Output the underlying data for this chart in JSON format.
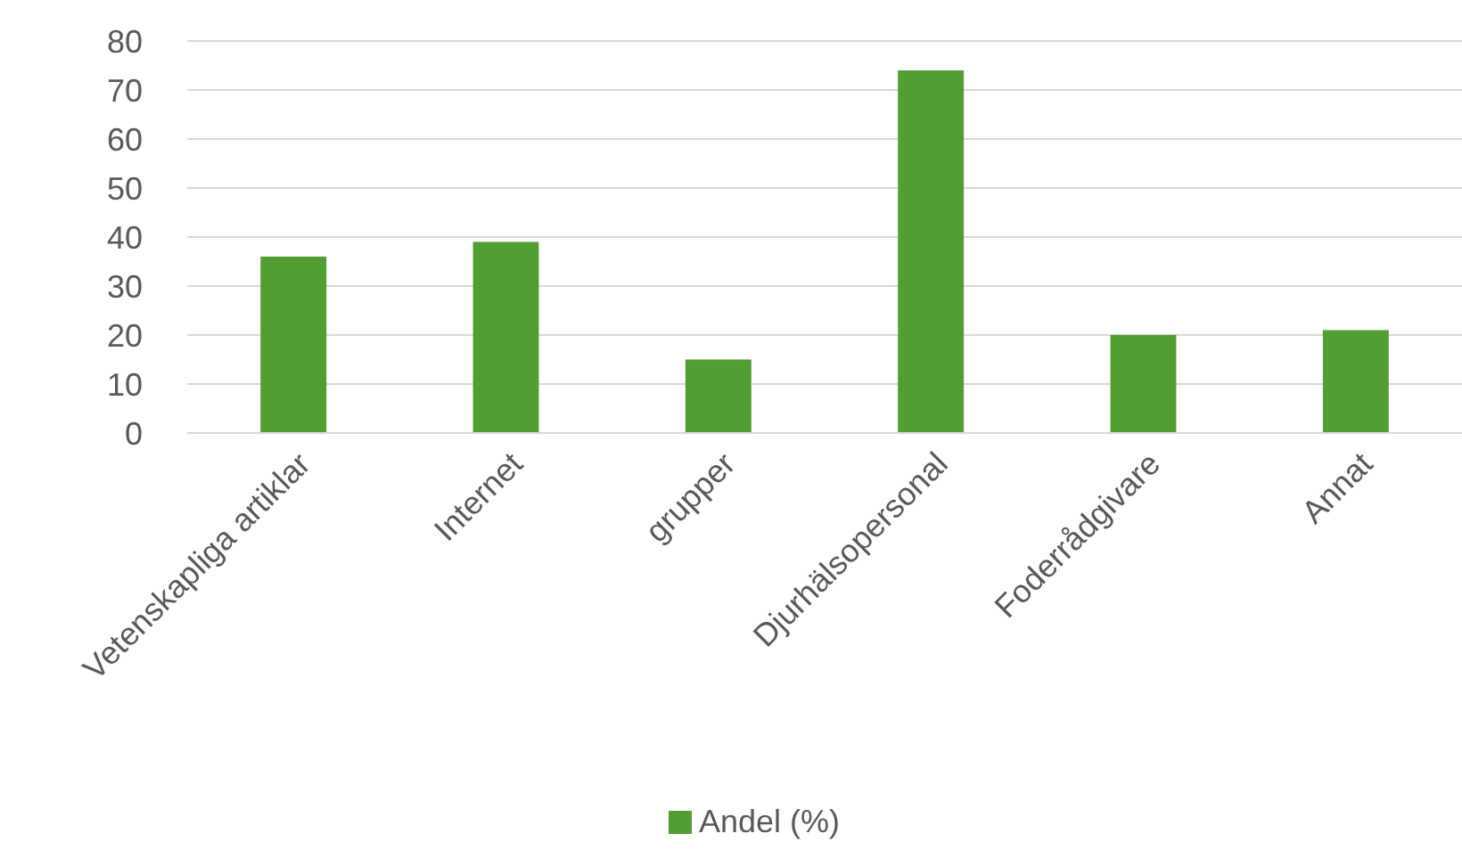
{
  "chart_data": {
    "type": "bar",
    "categories": [
      "Vetenskapliga artiklar",
      "Internet",
      "grupper",
      "Djurhälsopersonal",
      "Foderrådgivare",
      "Annat"
    ],
    "series": [
      {
        "name": "Andel (%)",
        "color": "#519e32",
        "values": [
          36,
          39,
          15,
          74,
          20,
          21
        ]
      }
    ],
    "ylim": [
      0,
      80
    ],
    "yticks": [
      0,
      10,
      20,
      30,
      40,
      50,
      60,
      70,
      80
    ],
    "grid": "y",
    "legend": "bottom"
  }
}
